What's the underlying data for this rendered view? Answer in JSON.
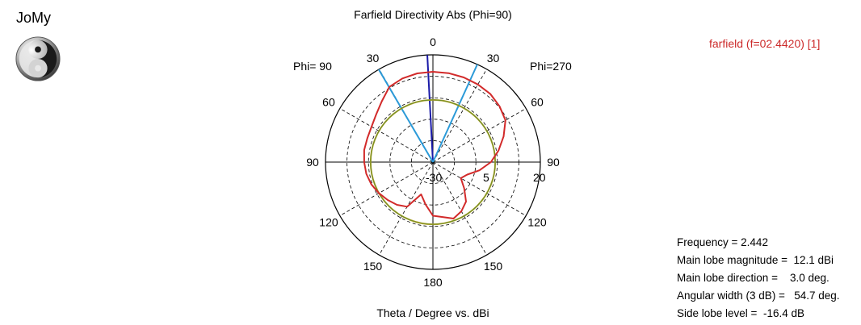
{
  "logo": {
    "text": "JoMy",
    "icon": "yin-yang-icon"
  },
  "chart_data": {
    "type": "polar",
    "title": "Farfield Directivity Abs (Phi=90)",
    "xlabel": "Theta / Degree vs. dBi",
    "legend": [
      {
        "name": "farfield (f=02.4420) [1]",
        "color": "#d22a2a"
      }
    ],
    "side_labels": {
      "left": "Phi= 90",
      "right": "Phi=270"
    },
    "angle_tick_labels": [
      "0",
      "30",
      "60",
      "90",
      "120",
      "150",
      "180",
      "150",
      "120",
      "90",
      "60",
      "30"
    ],
    "radial_tick_labels": {
      "min": "-30",
      "ring": "5",
      "max": "20"
    },
    "radial_range": [
      -30,
      20
    ],
    "radial_rings": [
      -20,
      -10,
      0,
      10
    ],
    "grid": true,
    "main_lobe_marker_deg": 3.0,
    "beamwidth_markers_deg": [
      -24.4,
      30.3
    ],
    "reference_level_dBi": -1.0,
    "series": [
      {
        "name": "farfield (f=02.4420) [1]",
        "color": "#d22a2a",
        "theta_deg": [
          -180,
          -170,
          -160,
          -150,
          -140,
          -130,
          -120,
          -110,
          -100,
          -90,
          -80,
          -70,
          -60,
          -50,
          -40,
          -30,
          -20,
          -10,
          0,
          10,
          20,
          30,
          40,
          50,
          60,
          70,
          80,
          90,
          100,
          110,
          120,
          130,
          140,
          150,
          160,
          170,
          180
        ],
        "dBi": [
          -5,
          -4,
          -2,
          -3.5,
          -6,
          -11,
          -15,
          -13,
          -8,
          -3,
          1,
          5,
          9,
          10.5,
          11.5,
          11.8,
          12,
          12.1,
          12.1,
          12,
          11.5,
          10.5,
          7,
          4.5,
          3,
          2.5,
          2.5,
          2,
          1.5,
          0.5,
          -1,
          -2.5,
          -4,
          -6,
          -14,
          -10,
          -5
        ]
      }
    ]
  },
  "stats": {
    "frequency": "Frequency = 2.442",
    "main_lobe_magnitude": "Main lobe magnitude =  12.1 dBi",
    "main_lobe_direction": "Main lobe direction =    3.0 deg.",
    "angular_width": "Angular width (3 dB) =   54.7 deg.",
    "side_lobe_level": "Side lobe level =  -16.4 dB"
  }
}
